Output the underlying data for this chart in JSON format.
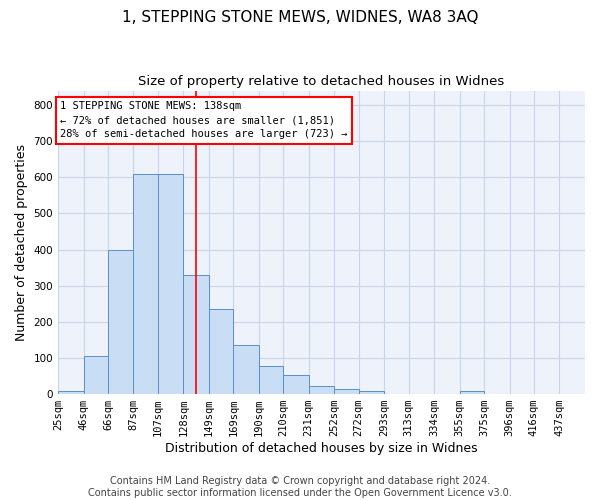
{
  "title": "1, STEPPING STONE MEWS, WIDNES, WA8 3AQ",
  "subtitle": "Size of property relative to detached houses in Widnes",
  "xlabel": "Distribution of detached houses by size in Widnes",
  "ylabel": "Number of detached properties",
  "footer_line1": "Contains HM Land Registry data © Crown copyright and database right 2024.",
  "footer_line2": "Contains public sector information licensed under the Open Government Licence v3.0.",
  "bin_labels": [
    "25sqm",
    "46sqm",
    "66sqm",
    "87sqm",
    "107sqm",
    "128sqm",
    "149sqm",
    "169sqm",
    "190sqm",
    "210sqm",
    "231sqm",
    "252sqm",
    "272sqm",
    "293sqm",
    "313sqm",
    "334sqm",
    "355sqm",
    "375sqm",
    "396sqm",
    "416sqm",
    "437sqm"
  ],
  "bin_edges": [
    25,
    46,
    66,
    87,
    107,
    128,
    149,
    169,
    190,
    210,
    231,
    252,
    272,
    293,
    313,
    334,
    355,
    375,
    396,
    416,
    437
  ],
  "bar_heights": [
    8,
    105,
    400,
    610,
    610,
    330,
    235,
    135,
    77,
    52,
    22,
    14,
    8,
    0,
    0,
    0,
    8,
    0,
    0,
    0,
    0
  ],
  "bar_color": "#c9ddf5",
  "bar_edge_color": "#5b8fc9",
  "grid_color": "#c8d4e8",
  "background_color": "#eef2fa",
  "vline_x": 138,
  "vline_color": "red",
  "annotation_text": "1 STEPPING STONE MEWS: 138sqm\n← 72% of detached houses are smaller (1,851)\n28% of semi-detached houses are larger (723) →",
  "annotation_box_color": "white",
  "annotation_box_edge": "red",
  "ylim": [
    0,
    840
  ],
  "yticks": [
    0,
    100,
    200,
    300,
    400,
    500,
    600,
    700,
    800
  ],
  "title_fontsize": 11,
  "subtitle_fontsize": 9.5,
  "xlabel_fontsize": 9,
  "ylabel_fontsize": 9,
  "tick_fontsize": 7.5,
  "annotation_fontsize": 7.5,
  "footer_fontsize": 7
}
